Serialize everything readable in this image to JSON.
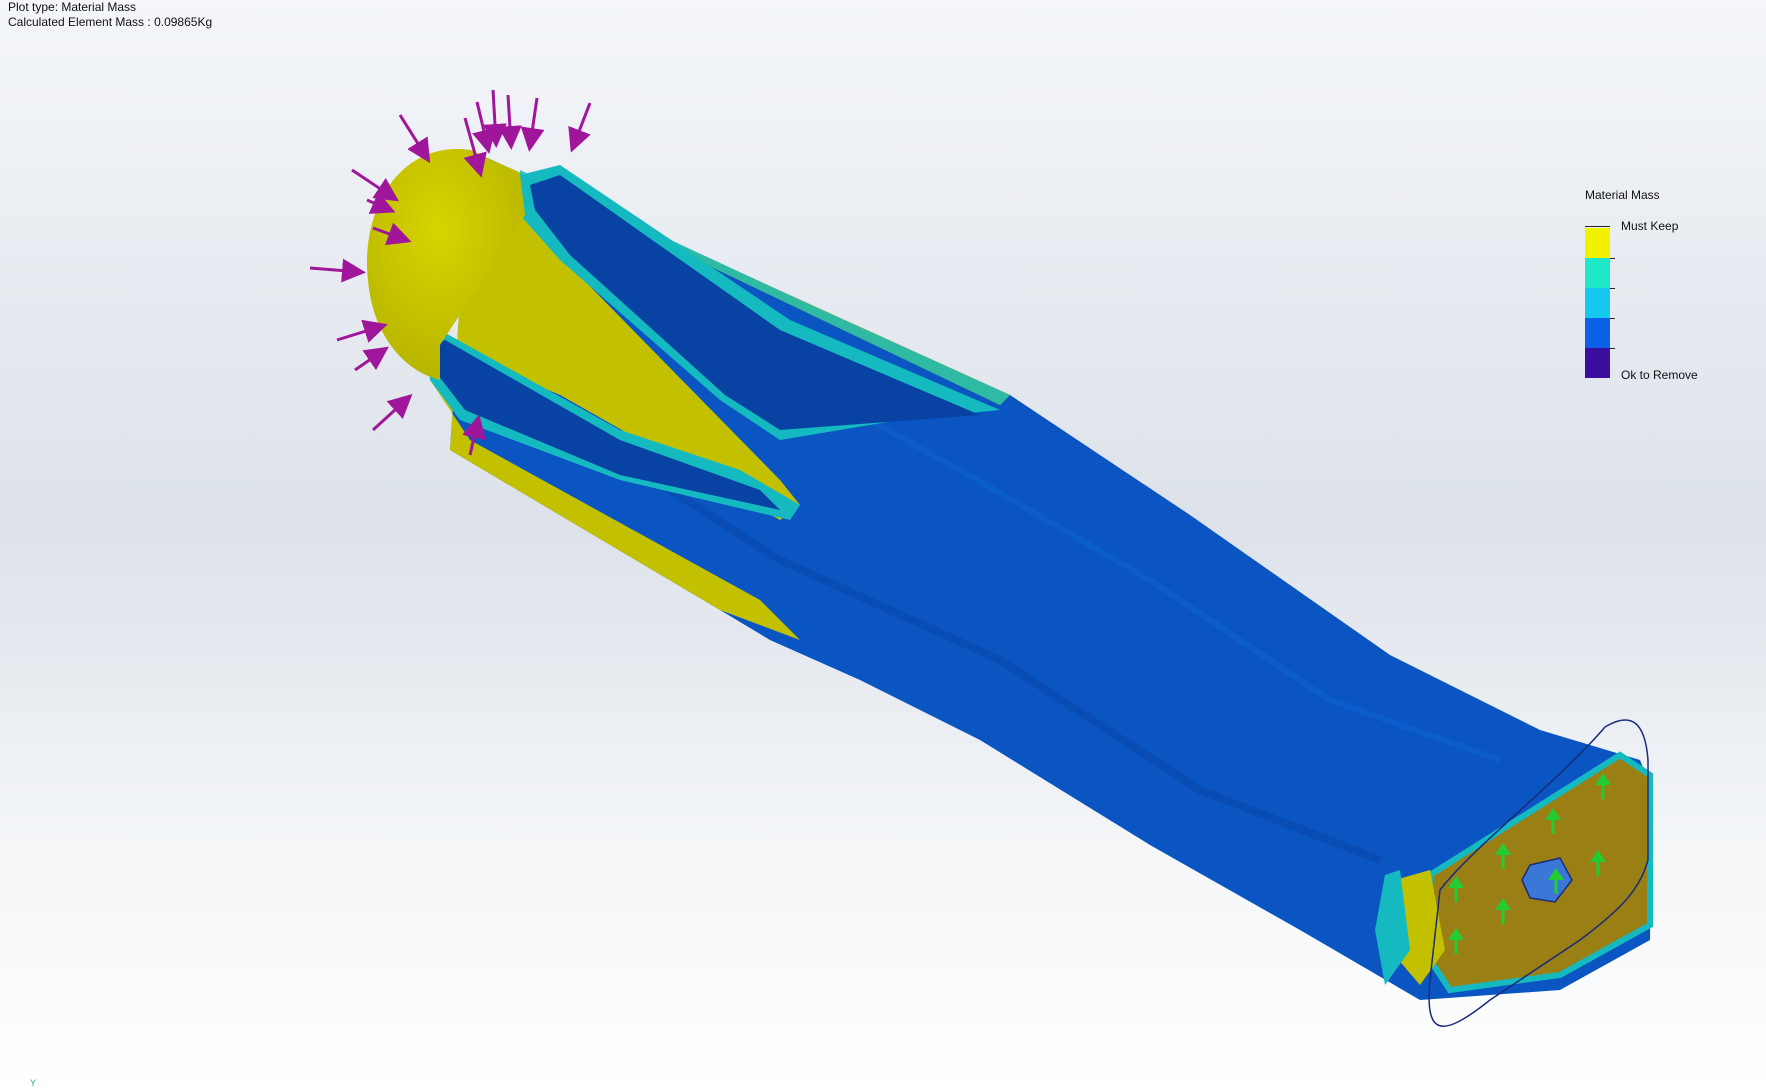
{
  "info": {
    "plot_type": "Plot type: Material Mass",
    "calc_mass_label": "Calculated Element Mass :",
    "calc_mass_value": "0.09865Kg"
  },
  "legend": {
    "title": "Material Mass",
    "max_label": "Must Keep",
    "min_label": "Ok to Remove",
    "colors": [
      "#f2f200",
      "#1de8c8",
      "#14c8f0",
      "#0a60e6",
      "#3a0fa0"
    ]
  },
  "model": {
    "body_color": "#0a55c2",
    "keep_color": "#c3c000",
    "transition_color": "#15b9c0",
    "load_arrow_color": "#a0169a",
    "fixture_color": "#22cc33",
    "highlight_edge_color": "#1a2c7a"
  },
  "triad": {
    "axis_label": "Y"
  }
}
